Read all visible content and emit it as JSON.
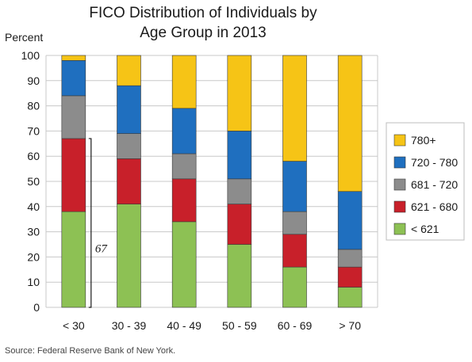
{
  "chart_data": {
    "type": "bar",
    "stacked": true,
    "title_lines": [
      "FICO Distribution of Individuals by",
      "Age Group in 2013"
    ],
    "ylabel": "Percent",
    "xlabel": "",
    "ylim": [
      0,
      100
    ],
    "yticks": [
      0,
      10,
      20,
      30,
      40,
      50,
      60,
      70,
      80,
      90,
      100
    ],
    "grid": true,
    "legend_position": "right",
    "categories": [
      "< 30",
      "30 - 39",
      "40 - 49",
      "50 - 59",
      "60 - 69",
      "> 70"
    ],
    "series": [
      {
        "name": "< 621",
        "color": "#8dc154",
        "values": [
          38,
          41,
          34,
          25,
          16,
          8
        ]
      },
      {
        "name": "621 - 680",
        "color": "#c8202a",
        "values": [
          29,
          18,
          17,
          16,
          13,
          8
        ]
      },
      {
        "name": "681 - 720",
        "color": "#8c8c8c",
        "values": [
          17,
          10,
          10,
          10,
          9,
          7
        ]
      },
      {
        "name": "720 - 780",
        "color": "#1f6fbf",
        "values": [
          14,
          19,
          18,
          19,
          20,
          23
        ]
      },
      {
        "name": "780+",
        "color": "#f6c416",
        "values": [
          2,
          12,
          21,
          30,
          42,
          54
        ]
      }
    ],
    "annotations": [
      {
        "text": "67",
        "category": "< 30",
        "range": [
          0,
          67
        ]
      }
    ],
    "source": "Source: Federal Reserve Bank of New York."
  }
}
